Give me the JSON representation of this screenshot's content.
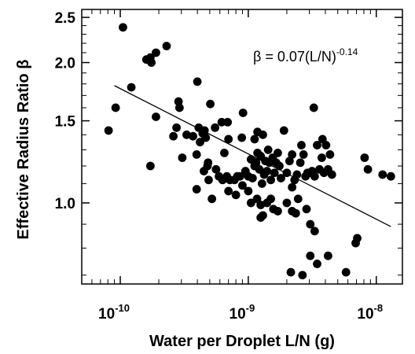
{
  "chart_data": {
    "type": "scatter",
    "xlabel": "Water per Droplet L/N (g)",
    "ylabel": "Effective Radius Ratio β",
    "xscale": "log",
    "yscale": "log",
    "xlim": [
      5e-11,
      1.6e-08
    ],
    "ylim": [
      0.67,
      2.6
    ],
    "x_tick_labels": [
      {
        "value": 1e-10,
        "base": "10",
        "exp": "-10"
      },
      {
        "value": 1e-09,
        "base": "10",
        "exp": "-9"
      },
      {
        "value": 1e-08,
        "base": "10",
        "exp": "-8"
      }
    ],
    "y_ticks": [
      1.0,
      1.5,
      2.0,
      2.5
    ],
    "y_tick_labels": [
      "1.0",
      "1.5",
      "2.0",
      "2.5"
    ],
    "grid": false,
    "annotation": {
      "text": "β = 0.07(L/N)",
      "exponent": "-0.14"
    },
    "fit_line": {
      "coefficient": 0.07,
      "exponent": -0.14,
      "x_range": [
        9e-11,
        1.3e-08
      ]
    },
    "points": [
      [
        8.1e-11,
        1.43
      ],
      [
        9.2e-11,
        1.6
      ],
      [
        1.05e-10,
        2.38
      ],
      [
        1.22e-10,
        1.77
      ],
      [
        1.6e-10,
        2.03
      ],
      [
        1.72e-10,
        2.05
      ],
      [
        1.75e-10,
        2.0
      ],
      [
        1.9e-10,
        2.1
      ],
      [
        2.3e-10,
        2.17
      ],
      [
        1.9e-10,
        1.53
      ],
      [
        1.72e-10,
        1.2
      ],
      [
        2.85e-10,
        1.65
      ],
      [
        2.9e-10,
        1.6
      ],
      [
        2.75e-10,
        1.45
      ],
      [
        2.6e-10,
        1.39
      ],
      [
        3.3e-10,
        1.4
      ],
      [
        3.05e-10,
        1.25
      ],
      [
        3.7e-10,
        1.39
      ],
      [
        4e-10,
        1.82
      ],
      [
        4.1e-10,
        1.45
      ],
      [
        3.95e-10,
        1.27
      ],
      [
        4.2e-10,
        1.35
      ],
      [
        4.4e-10,
        1.41
      ],
      [
        4.55e-10,
        1.43
      ],
      [
        4.65e-10,
        1.38
      ],
      [
        4.85e-10,
        1.22
      ],
      [
        4.5e-10,
        1.17
      ],
      [
        5.05e-10,
        1.63
      ],
      [
        5.5e-10,
        1.45
      ],
      [
        4.8e-10,
        1.2
      ],
      [
        4.9e-10,
        1.12
      ],
      [
        3.95e-10,
        1.07
      ],
      [
        5.2e-10,
        1.02
      ],
      [
        5.6e-10,
        1.18
      ],
      [
        6.2e-10,
        1.49
      ],
      [
        6.5e-10,
        1.28
      ],
      [
        6.9e-10,
        1.49
      ],
      [
        7e-10,
        1.37
      ],
      [
        5.9e-10,
        1.14
      ],
      [
        6.3e-10,
        1.12
      ],
      [
        6.8e-10,
        1.14
      ],
      [
        7.2e-10,
        1.12
      ],
      [
        7.8e-10,
        1.12
      ],
      [
        8.2e-10,
        1.14
      ],
      [
        8.6e-10,
        1.14
      ],
      [
        8.9e-10,
        1.38
      ],
      [
        9.1e-10,
        1.56
      ],
      [
        9.5e-10,
        1.17
      ],
      [
        1e-09,
        1.14
      ],
      [
        1.05e-09,
        1.24
      ],
      [
        1.08e-09,
        1.13
      ],
      [
        1.12e-09,
        1.2
      ],
      [
        1.15e-09,
        1.22
      ],
      [
        1.18e-09,
        1.28
      ],
      [
        1.22e-09,
        1.18
      ],
      [
        1.25e-09,
        1.26
      ],
      [
        1.28e-09,
        1.1
      ],
      [
        1.3e-09,
        1.4
      ],
      [
        1.33e-09,
        1.15
      ],
      [
        1.36e-09,
        1.23
      ],
      [
        1.4e-09,
        1.17
      ],
      [
        1.43e-09,
        1.3
      ],
      [
        1.46e-09,
        1.22
      ],
      [
        1.5e-09,
        1.12
      ],
      [
        1.55e-09,
        1.25
      ],
      [
        1.6e-09,
        1.16
      ],
      [
        1.65e-09,
        1.22
      ],
      [
        1.7e-09,
        1.28
      ],
      [
        1.75e-09,
        1.2
      ],
      [
        1.8e-09,
        1.13
      ],
      [
        1.9e-09,
        1.43
      ],
      [
        2e-09,
        1.16
      ],
      [
        2.1e-09,
        1.23
      ],
      [
        2.2e-09,
        1.27
      ],
      [
        1e-09,
        1.06
      ],
      [
        1.05e-09,
        1.0
      ],
      [
        1.17e-09,
        1.02
      ],
      [
        1.25e-09,
        0.99
      ],
      [
        1.4e-09,
        1.0
      ],
      [
        1.5e-09,
        1.02
      ],
      [
        1.57e-09,
        0.97
      ],
      [
        1.7e-09,
        0.96
      ],
      [
        1.3e-09,
        0.94
      ],
      [
        1.25e-09,
        0.93
      ],
      [
        2.2e-09,
        1.08
      ],
      [
        2.3e-09,
        1.12
      ],
      [
        2.4e-09,
        1.15
      ],
      [
        2.45e-09,
        1.02
      ],
      [
        2.55e-09,
        1.22
      ],
      [
        2.6e-09,
        1.33
      ],
      [
        2.7e-09,
        1.27
      ],
      [
        2.8e-09,
        1.14
      ],
      [
        2.9e-09,
        1.16
      ],
      [
        3e-09,
        1.16
      ],
      [
        3.15e-09,
        1.17
      ],
      [
        3.3e-09,
        1.14
      ],
      [
        3.45e-09,
        1.33
      ],
      [
        3.6e-09,
        1.18
      ],
      [
        3.75e-09,
        1.25
      ],
      [
        3.9e-09,
        1.16
      ],
      [
        4.05e-09,
        1.33
      ],
      [
        4.2e-09,
        1.18
      ],
      [
        4.35e-09,
        1.27
      ],
      [
        4.5e-09,
        1.15
      ],
      [
        3.25e-09,
        1.6
      ],
      [
        3.8e-09,
        1.37
      ],
      [
        2.35e-09,
        0.95
      ],
      [
        2.85e-09,
        0.97
      ],
      [
        3.05e-09,
        0.9
      ],
      [
        3.3e-09,
        0.87
      ],
      [
        8e-10,
        1.04
      ],
      [
        7e-10,
        1.06
      ],
      [
        9e-10,
        1.09
      ],
      [
        1.12e-09,
        1.37
      ],
      [
        1.18e-09,
        1.42
      ],
      [
        2e-09,
        1.0
      ],
      [
        2.2e-09,
        0.96
      ],
      [
        3.05e-09,
        0.77
      ],
      [
        3.45e-09,
        0.74
      ],
      [
        4.2e-09,
        0.77
      ],
      [
        5.8e-09,
        0.71
      ],
      [
        6.9e-09,
        0.82
      ],
      [
        7.1e-09,
        0.84
      ],
      [
        2.15e-09,
        0.71
      ],
      [
        2.65e-09,
        0.7
      ],
      [
        8.1e-09,
        1.25
      ],
      [
        8.6e-09,
        1.18
      ],
      [
        1.12e-08,
        1.15
      ],
      [
        1.3e-08,
        1.14
      ]
    ]
  }
}
